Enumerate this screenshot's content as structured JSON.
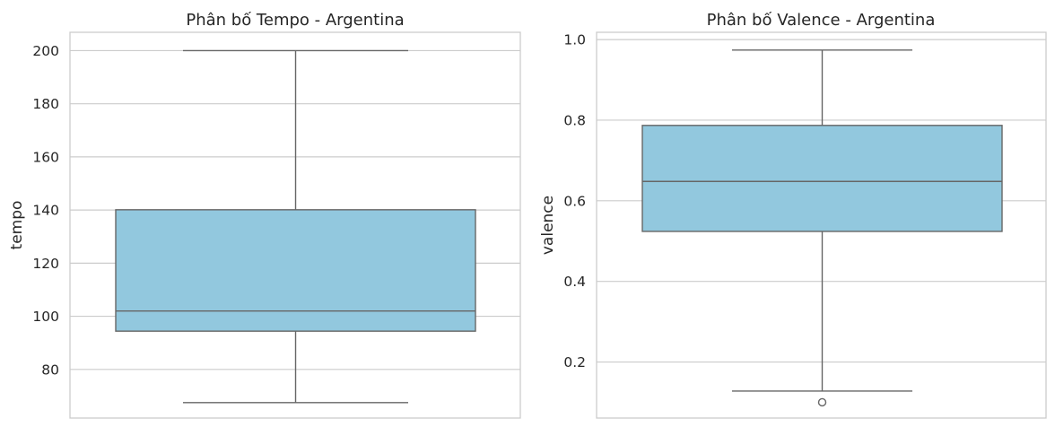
{
  "chart_data": [
    {
      "type": "box",
      "title": "Phân bố Tempo - Argentina",
      "xlabel": "",
      "ylabel": "tempo",
      "ylim": [
        61.7,
        206.9
      ],
      "yticks": [
        80,
        100,
        120,
        140,
        160,
        180,
        200
      ],
      "ytick_labels": [
        "80",
        "100",
        "120",
        "140",
        "160",
        "180",
        "200"
      ],
      "box": {
        "whisker_low": 67.5,
        "q1": 94.4,
        "median": 102.0,
        "q3": 140.1,
        "whisker_high": 200.0
      },
      "outliers": [],
      "color": "#92c8de",
      "grid": true
    },
    {
      "type": "box",
      "title": "Phân bố Valence - Argentina",
      "xlabel": "",
      "ylabel": "valence",
      "ylim": [
        0.061,
        1.018
      ],
      "yticks": [
        0.2,
        0.4,
        0.6,
        0.8,
        1.0
      ],
      "ytick_labels": [
        "0.2",
        "0.4",
        "0.6",
        "0.8",
        "1.0"
      ],
      "box": {
        "whisker_low": 0.128,
        "q1": 0.524,
        "median": 0.648,
        "q3": 0.787,
        "whisker_high": 0.974
      },
      "outliers": [
        0.1
      ],
      "color": "#92c8de",
      "grid": true
    }
  ]
}
